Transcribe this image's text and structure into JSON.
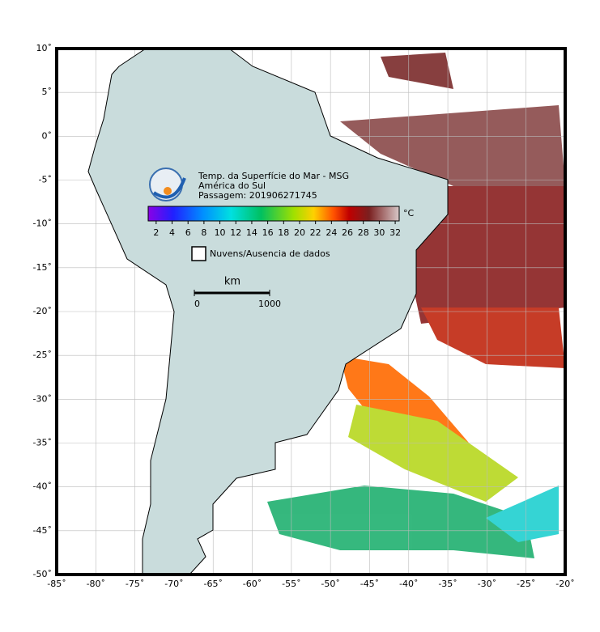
{
  "map": {
    "lonlim": [
      -85,
      -20
    ],
    "latlim": [
      -50,
      10
    ],
    "lonticks": [
      {
        "value": -85,
        "label": "-85˚"
      },
      {
        "value": -80,
        "label": "-80˚"
      },
      {
        "value": -75,
        "label": "-75˚"
      },
      {
        "value": -70,
        "label": "-70˚"
      },
      {
        "value": -65,
        "label": "-65˚"
      },
      {
        "value": -60,
        "label": "-60˚"
      },
      {
        "value": -55,
        "label": "-55˚"
      },
      {
        "value": -50,
        "label": "-50˚"
      },
      {
        "value": -45,
        "label": "-45˚"
      },
      {
        "value": -40,
        "label": "-40˚"
      },
      {
        "value": -35,
        "label": "-35˚"
      },
      {
        "value": -30,
        "label": "-30˚"
      },
      {
        "value": -25,
        "label": "-25˚"
      },
      {
        "value": -20,
        "label": "-20˚"
      }
    ],
    "latticks": [
      {
        "value": 10,
        "label": "10˚"
      },
      {
        "value": 5,
        "label": "5˚"
      },
      {
        "value": 0,
        "label": "0˚"
      },
      {
        "value": -5,
        "label": "-5˚"
      },
      {
        "value": -10,
        "label": "-10˚"
      },
      {
        "value": -15,
        "label": "-15˚"
      },
      {
        "value": -20,
        "label": "-20˚"
      },
      {
        "value": -25,
        "label": "-25˚"
      },
      {
        "value": -30,
        "label": "-30˚"
      },
      {
        "value": -35,
        "label": "-35˚"
      },
      {
        "value": -40,
        "label": "-40˚"
      },
      {
        "value": -45,
        "label": "-45˚"
      },
      {
        "value": -50,
        "label": "-50˚"
      }
    ],
    "grid": true
  },
  "legend": {
    "title_lines": [
      "Temp. da Superfície do Mar - MSG",
      "América do Sul",
      "Passagem: 201906271745"
    ],
    "colorbar": {
      "unit": "°C",
      "lim": [
        1,
        32.5
      ],
      "ticks": [
        2,
        4,
        6,
        8,
        10,
        12,
        14,
        16,
        18,
        20,
        22,
        24,
        26,
        28,
        30,
        32
      ]
    },
    "no_data": "Nuvens/Ausencia de dados",
    "scale": {
      "unit": "km",
      "ticks": [
        0,
        1000
      ]
    }
  }
}
